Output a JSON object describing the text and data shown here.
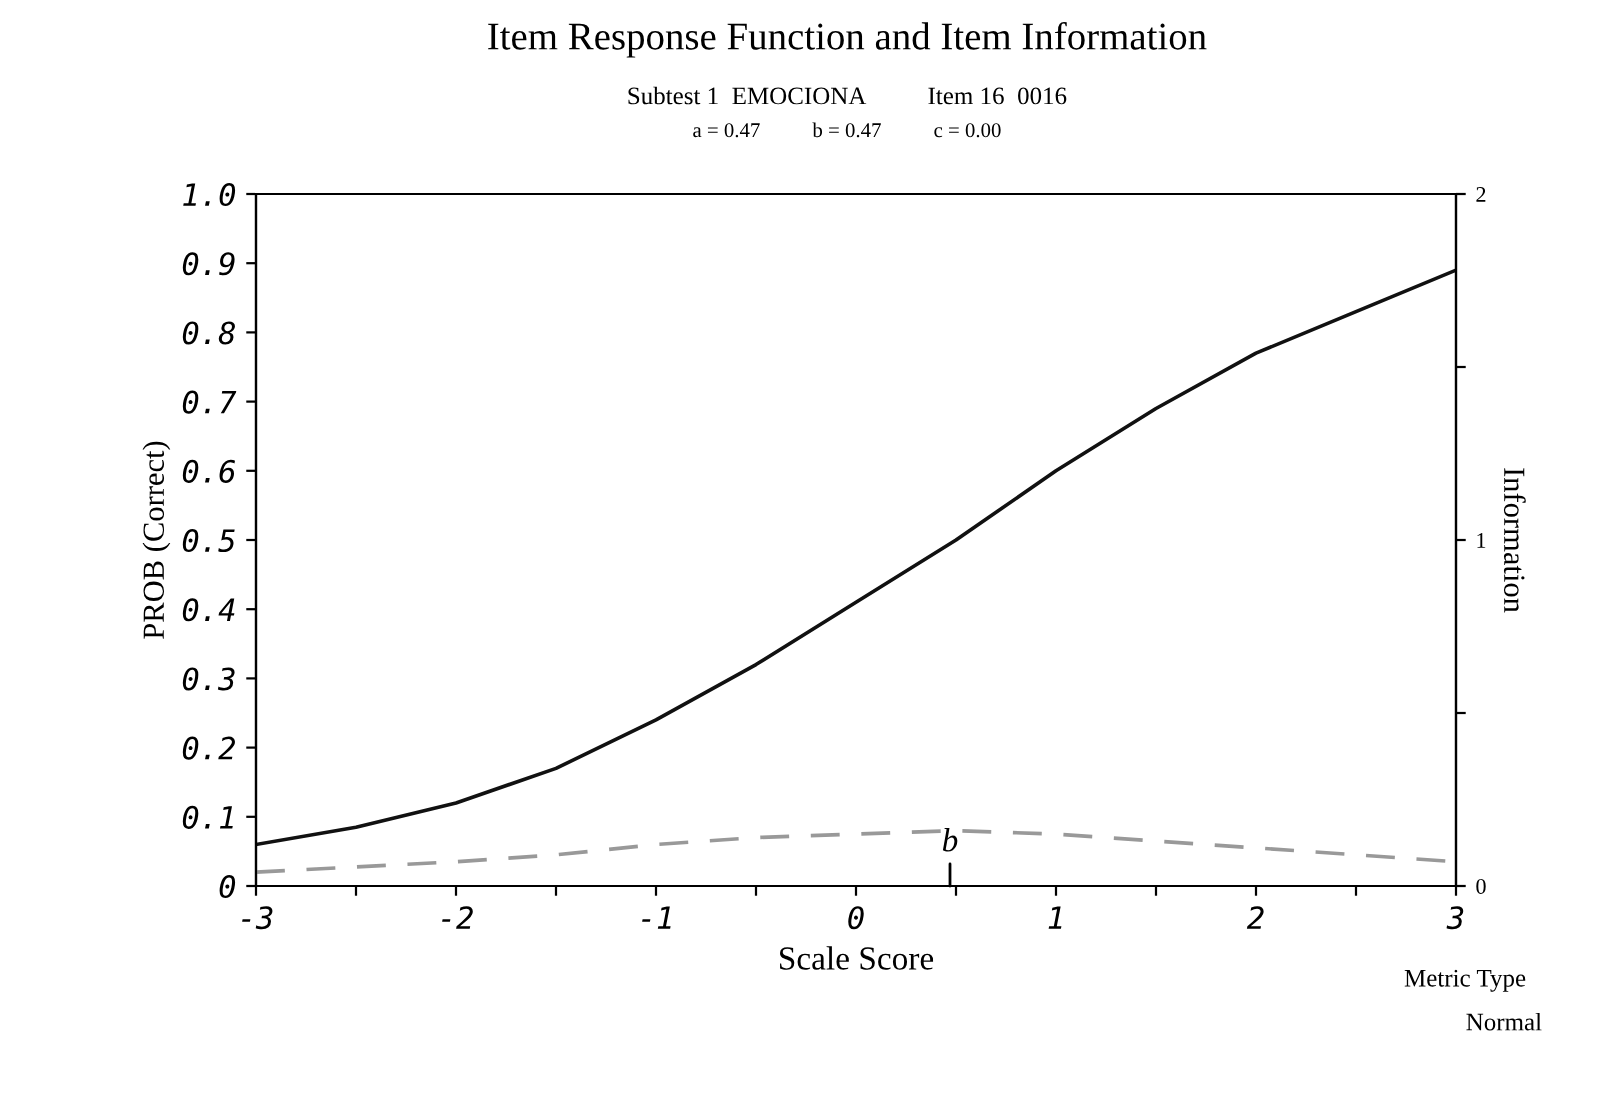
{
  "chart_data": {
    "type": "line",
    "title": "Item Response Function and Item Information",
    "subtitle": "Subtest 1  EMOCIONA          Item 16  0016\na = 0.47          b = 0.47          c = 0.00",
    "xlabel": "Scale Score",
    "ylabel": "PROB (Correct)",
    "y2label": "Information",
    "x": [
      -3,
      -2.5,
      -2,
      -1.5,
      -1,
      -0.5,
      0,
      0.5,
      1,
      1.5,
      2,
      2.5,
      3
    ],
    "series": [
      {
        "color": "#111111",
        "line_style": "solid",
        "values": [
          0.06,
          0.085,
          0.12,
          0.17,
          0.24,
          0.32,
          0.41,
          0.5,
          0.6,
          0.69,
          0.77,
          0.83,
          0.89
        ]
      },
      {
        "color": "#999999",
        "line_style": "dashed",
        "axis": "y2",
        "values": [
          0.04,
          0.055,
          0.07,
          0.09,
          0.12,
          0.14,
          0.15,
          0.16,
          0.15,
          0.13,
          0.11,
          0.09,
          0.07
        ]
      }
    ],
    "xlim": [
      -3,
      3
    ],
    "xticks": [
      -3,
      {
        "value": -2.5,
        "label": null
      },
      -2,
      {
        "value": -1.5,
        "label": null
      },
      -1,
      {
        "value": -0.5,
        "label": null
      },
      0,
      {
        "value": 0.5,
        "label": null
      },
      1,
      {
        "value": 1.5,
        "label": null
      },
      2,
      {
        "value": 2.5,
        "label": null
      },
      3
    ],
    "ylim": [
      0,
      1.0
    ],
    "yticks": [
      0,
      0.1,
      0.2,
      0.3,
      0.4,
      0.5,
      0.6,
      0.7,
      0.8,
      0.9,
      {
        "value": 1.0,
        "label": "1.0"
      }
    ],
    "y2lim": [
      0,
      2
    ],
    "y2ticks": [
      0,
      {
        "value": 0.5,
        "label": null
      },
      1,
      {
        "value": 1.5,
        "label": null
      },
      2
    ],
    "annotations": [
      {
        "text": "b",
        "x": 0.47,
        "y": 0.08
      },
      "Metric Type",
      "Normal"
    ],
    "grid": false,
    "legend": false,
    "marker": "none"
  }
}
